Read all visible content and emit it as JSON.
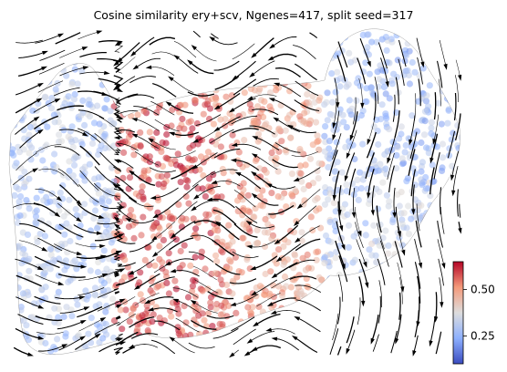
{
  "chart_data": {
    "type": "scatter",
    "subtype": "velocity-stream-embedding",
    "title": "Cosine similarity ery+scv, Ngenes=417, split seed=317",
    "xlabel": "",
    "ylabel": "",
    "axes_visible": false,
    "grid": false,
    "colorbar": {
      "colormap": "coolwarm",
      "min": 0.1,
      "max": 0.65,
      "ticks": [
        0.25,
        0.5
      ],
      "tick_labels": [
        "0.25",
        "0.50"
      ],
      "placement": "bottom-right"
    },
    "colors": {
      "low": "#3b4cc0",
      "mid": "#dddddd",
      "high": "#b40426",
      "stream": "#000000"
    },
    "regions": [
      {
        "name": "left-cluster",
        "value": 0.3
      },
      {
        "name": "center-band",
        "value": 0.58
      },
      {
        "name": "center-right-band",
        "value": 0.52
      },
      {
        "name": "upper-right-cluster",
        "value": 0.28
      },
      {
        "name": "lower-right-cluster",
        "value": 0.32
      }
    ]
  }
}
